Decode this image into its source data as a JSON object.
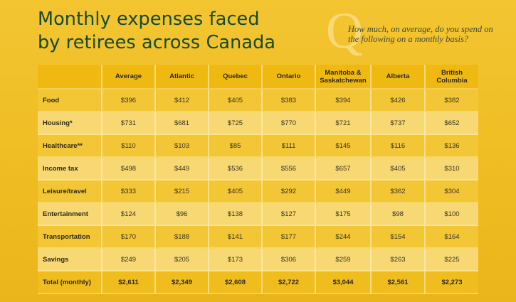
{
  "title_line1": "Monthly expenses faced",
  "title_line2": "by retirees across Canada",
  "q_glyph": "Q",
  "question": "How much, on average, do you spend on the following on a monthly basis?",
  "chart_data": {
    "type": "table",
    "columns": [
      "",
      "Average",
      "Atlantic",
      "Quebec",
      "Ontario",
      "Manitoba & Saskatchewan",
      "Alberta",
      "British Columbia"
    ],
    "rows": [
      {
        "label": "Food",
        "values": [
          "$396",
          "$412",
          "$405",
          "$383",
          "$394",
          "$426",
          "$382"
        ]
      },
      {
        "label": "Housing*",
        "values": [
          "$731",
          "$681",
          "$725",
          "$770",
          "$721",
          "$737",
          "$652"
        ]
      },
      {
        "label": "Healthcare**",
        "values": [
          "$110",
          "$103",
          "$85",
          "$111",
          "$145",
          "$116",
          "$136"
        ]
      },
      {
        "label": "Income tax",
        "values": [
          "$498",
          "$449",
          "$536",
          "$556",
          "$657",
          "$405",
          "$310"
        ]
      },
      {
        "label": "Leisure/travel",
        "values": [
          "$333",
          "$215",
          "$405",
          "$292",
          "$449",
          "$362",
          "$304"
        ]
      },
      {
        "label": "Entertainment",
        "values": [
          "$124",
          "$96",
          "$138",
          "$127",
          "$175",
          "$98",
          "$100"
        ]
      },
      {
        "label": "Transportation",
        "values": [
          "$170",
          "$188",
          "$141",
          "$177",
          "$244",
          "$154",
          "$164"
        ]
      },
      {
        "label": "Savings",
        "values": [
          "$249",
          "$205",
          "$173",
          "$306",
          "$259",
          "$263",
          "$225"
        ]
      }
    ],
    "total": {
      "label": "Total (monthly)",
      "values": [
        "$2,611",
        "$2,349",
        "$2,608",
        "$2,722",
        "$3,044",
        "$2,561",
        "$2,273"
      ]
    }
  }
}
